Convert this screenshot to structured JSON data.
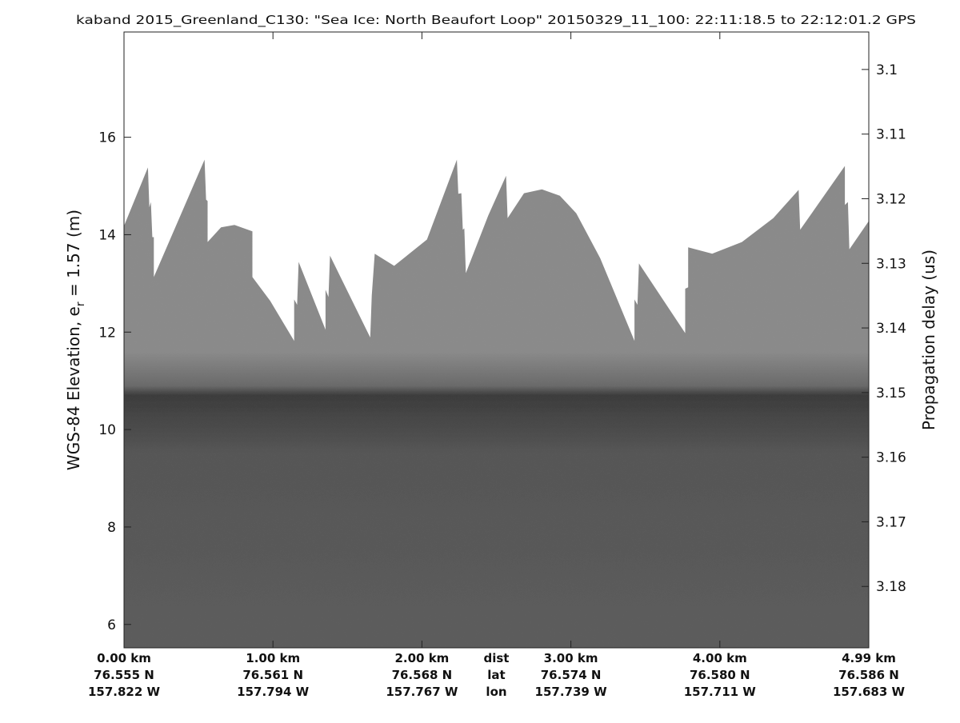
{
  "chart_data": {
    "type": "heatmap",
    "title": "kaband 2015_Greenland_C130: \"Sea Ice: North Beaufort Loop\"  20150329_11_100: 22:11:18.5 to 22:12:01.2 GPS",
    "ylabel": {
      "main": "WGS-84 Elevation, e",
      "sub": "r",
      "rest": " = 1.57 (m)"
    },
    "ylabel_right": "Propagation delay (us)",
    "ylim": [
      5.52,
      18.16
    ],
    "yticks": [
      6,
      8,
      10,
      12,
      14,
      16
    ],
    "ylim_right": [
      3.0942,
      3.1895
    ],
    "yticks_right": [
      "3.1",
      "3.11",
      "3.12",
      "3.13",
      "3.14",
      "3.15",
      "3.16",
      "3.17",
      "3.18"
    ],
    "xlim_km": [
      0,
      4.99
    ],
    "x_row_labels": [
      "dist",
      "lat",
      "lon"
    ],
    "x_columns": [
      {
        "dist": "0.00 km",
        "lat": "76.555 N",
        "lon": "157.822 W"
      },
      {
        "dist": "1.00 km",
        "lat": "76.561 N",
        "lon": "157.794 W"
      },
      {
        "dist": "2.00 km",
        "lat": "76.568 N",
        "lon": "157.767 W"
      },
      {
        "dist": "3.00 km",
        "lat": "76.574 N",
        "lon": "157.739 W"
      },
      {
        "dist": "4.00 km",
        "lat": "76.580 N",
        "lon": "157.711 W"
      },
      {
        "dist": "4.99 km",
        "lat": "76.586 N",
        "lon": "157.683 W"
      }
    ],
    "colormap": "gray",
    "data_top_boundary_km_m": [
      [
        0.0,
        14.18
      ],
      [
        0.16,
        15.38
      ],
      [
        0.17,
        14.56
      ],
      [
        0.18,
        14.67
      ],
      [
        0.19,
        13.95
      ],
      [
        0.2,
        13.95
      ],
      [
        0.2,
        13.13
      ],
      [
        0.54,
        15.54
      ],
      [
        0.55,
        14.72
      ],
      [
        0.56,
        14.69
      ],
      [
        0.56,
        13.85
      ],
      [
        0.65,
        14.15
      ],
      [
        0.74,
        14.2
      ],
      [
        0.86,
        14.07
      ],
      [
        0.86,
        13.13
      ],
      [
        0.98,
        12.64
      ],
      [
        1.14,
        11.82
      ],
      [
        1.14,
        12.67
      ],
      [
        1.16,
        12.56
      ],
      [
        1.17,
        13.44
      ],
      [
        1.35,
        12.05
      ],
      [
        1.35,
        12.87
      ],
      [
        1.37,
        12.72
      ],
      [
        1.38,
        13.57
      ],
      [
        1.65,
        11.89
      ],
      [
        1.66,
        12.75
      ],
      [
        1.68,
        13.61
      ],
      [
        1.81,
        13.36
      ],
      [
        2.03,
        13.9
      ],
      [
        2.23,
        15.54
      ],
      [
        2.24,
        14.84
      ],
      [
        2.26,
        14.85
      ],
      [
        2.27,
        14.1
      ],
      [
        2.28,
        14.13
      ],
      [
        2.29,
        13.21
      ],
      [
        2.44,
        14.39
      ],
      [
        2.56,
        15.21
      ],
      [
        2.57,
        14.34
      ],
      [
        2.68,
        14.85
      ],
      [
        2.8,
        14.93
      ],
      [
        2.92,
        14.8
      ],
      [
        3.03,
        14.44
      ],
      [
        3.19,
        13.52
      ],
      [
        3.42,
        11.82
      ],
      [
        3.42,
        12.67
      ],
      [
        3.44,
        12.56
      ],
      [
        3.45,
        13.41
      ],
      [
        3.76,
        11.98
      ],
      [
        3.76,
        12.89
      ],
      [
        3.78,
        12.92
      ],
      [
        3.78,
        13.74
      ],
      [
        3.94,
        13.61
      ],
      [
        4.14,
        13.85
      ],
      [
        4.35,
        14.34
      ],
      [
        4.52,
        14.92
      ],
      [
        4.53,
        14.1
      ],
      [
        4.83,
        15.41
      ],
      [
        4.83,
        14.61
      ],
      [
        4.85,
        14.67
      ],
      [
        4.86,
        13.7
      ],
      [
        4.99,
        14.28
      ]
    ],
    "surface_return_elevation_m": 10.7,
    "colors": {
      "upper": "#8a8a8a",
      "surface": "#3c3c3c",
      "lower": "#565656"
    }
  }
}
